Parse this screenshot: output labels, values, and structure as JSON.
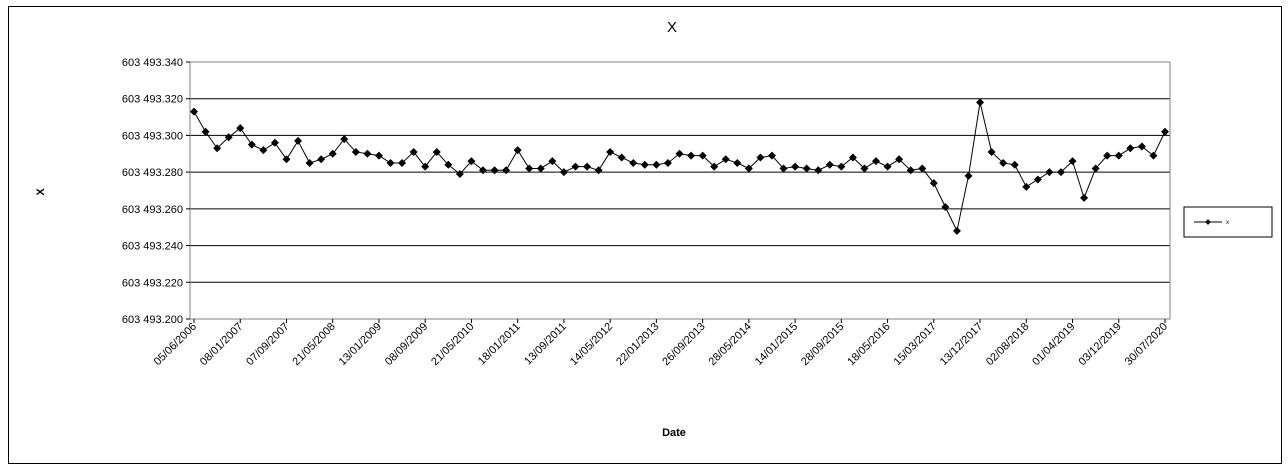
{
  "chart_data": {
    "type": "line",
    "title": "X",
    "xlabel": "Date",
    "ylabel": "X",
    "ylim": [
      603493.2,
      603493.34
    ],
    "y_ticks": [
      "603 493.200",
      "603 493.220",
      "603 493.240",
      "603 493.260",
      "603 493.280",
      "603 493.300",
      "603 493.320",
      "603 493.340"
    ],
    "x_tick_labels": [
      "05/06/2006",
      "08/01/2007",
      "07/09/2007",
      "21/05/2008",
      "13/01/2009",
      "08/09/2009",
      "21/05/2010",
      "18/01/2011",
      "13/09/2011",
      "14/05/2012",
      "22/01/2013",
      "26/09/2013",
      "28/05/2014",
      "14/01/2015",
      "28/09/2015",
      "18/05/2016",
      "15/03/2017",
      "13/12/2017",
      "02/08/2018",
      "01/04/2019",
      "03/12/2019",
      "30/07/2020"
    ],
    "grid": true,
    "legend_position": "right",
    "colors": {
      "line": "#000000",
      "gridline": "#000000",
      "plot_border": "#808080"
    },
    "series": [
      {
        "name": "x",
        "values": [
          603493.313,
          603493.302,
          603493.293,
          603493.299,
          603493.304,
          603493.295,
          603493.292,
          603493.296,
          603493.287,
          603493.297,
          603493.285,
          603493.287,
          603493.29,
          603493.298,
          603493.291,
          603493.29,
          603493.289,
          603493.285,
          603493.285,
          603493.291,
          603493.283,
          603493.291,
          603493.284,
          603493.279,
          603493.286,
          603493.281,
          603493.281,
          603493.281,
          603493.292,
          603493.282,
          603493.282,
          603493.286,
          603493.28,
          603493.283,
          603493.283,
          603493.281,
          603493.291,
          603493.288,
          603493.285,
          603493.284,
          603493.284,
          603493.285,
          603493.29,
          603493.289,
          603493.289,
          603493.283,
          603493.287,
          603493.285,
          603493.282,
          603493.288,
          603493.289,
          603493.282,
          603493.283,
          603493.282,
          603493.281,
          603493.284,
          603493.283,
          603493.288,
          603493.282,
          603493.286,
          603493.283,
          603493.287,
          603493.281,
          603493.282,
          603493.274,
          603493.261,
          603493.248,
          603493.278,
          603493.318,
          603493.291,
          603493.285,
          603493.284,
          603493.272,
          603493.276,
          603493.28,
          603493.28,
          603493.286,
          603493.266,
          603493.282,
          603493.289,
          603493.289,
          603493.293,
          603493.294,
          603493.289,
          603493.302
        ]
      }
    ]
  }
}
